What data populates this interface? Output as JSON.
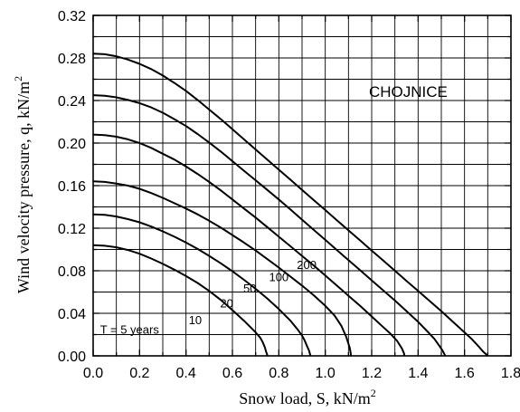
{
  "chart_data": {
    "type": "line",
    "title": "",
    "xlabel_main": "Snow load, S, kN/m",
    "xlabel_sup": "2",
    "ylabel_main": "Wind velocity pressure, q, kN/m",
    "ylabel_sup": "2",
    "xlim": [
      0.0,
      1.8
    ],
    "ylim": [
      0.0,
      0.32
    ],
    "xticks": [
      "0.0",
      "0.2",
      "0.4",
      "0.6",
      "0.8",
      "1.0",
      "1.2",
      "1.4",
      "1.6",
      "1.8"
    ],
    "yticks": [
      "0.00",
      "0.04",
      "0.08",
      "0.12",
      "0.16",
      "0.20",
      "0.24",
      "0.28",
      "0.32"
    ],
    "grid": true,
    "annotation": "CHOJNICE",
    "series": [
      {
        "name": "T = 5 years",
        "label": "T = 5 years",
        "x": [
          0.0,
          0.05,
          0.1,
          0.15,
          0.2,
          0.25,
          0.3,
          0.35,
          0.4,
          0.45,
          0.5,
          0.55,
          0.6,
          0.65,
          0.7,
          0.72,
          0.73,
          0.74,
          0.745,
          0.75,
          0.75
        ],
        "y": [
          0.104,
          0.1035,
          0.102,
          0.0995,
          0.096,
          0.0915,
          0.0865,
          0.081,
          0.075,
          0.0685,
          0.061,
          0.0525,
          0.043,
          0.033,
          0.022,
          0.017,
          0.013,
          0.008,
          0.004,
          0.001,
          0.0
        ]
      },
      {
        "name": "10",
        "label": "10",
        "x": [
          0.0,
          0.05,
          0.1,
          0.15,
          0.2,
          0.25,
          0.3,
          0.35,
          0.4,
          0.45,
          0.5,
          0.55,
          0.6,
          0.65,
          0.7,
          0.75,
          0.8,
          0.85,
          0.88,
          0.9,
          0.91,
          0.92,
          0.93,
          0.935,
          0.935
        ],
        "y": [
          0.133,
          0.1325,
          0.131,
          0.1285,
          0.1255,
          0.1215,
          0.117,
          0.112,
          0.1065,
          0.1005,
          0.094,
          0.087,
          0.0795,
          0.0715,
          0.063,
          0.054,
          0.044,
          0.033,
          0.025,
          0.019,
          0.015,
          0.01,
          0.005,
          0.001,
          0.0
        ]
      },
      {
        "name": "20",
        "label": "20",
        "x": [
          0.0,
          0.05,
          0.1,
          0.15,
          0.2,
          0.25,
          0.3,
          0.35,
          0.4,
          0.45,
          0.5,
          0.55,
          0.6,
          0.65,
          0.7,
          0.75,
          0.8,
          0.85,
          0.9,
          0.95,
          1.0,
          1.04,
          1.07,
          1.09,
          1.105,
          1.11,
          1.11
        ],
        "y": [
          0.164,
          0.1635,
          0.162,
          0.16,
          0.157,
          0.153,
          0.1485,
          0.1435,
          0.1385,
          0.133,
          0.127,
          0.1205,
          0.1135,
          0.1065,
          0.099,
          0.091,
          0.083,
          0.0745,
          0.066,
          0.057,
          0.047,
          0.038,
          0.028,
          0.018,
          0.008,
          0.002,
          0.0
        ]
      },
      {
        "name": "50",
        "label": "50",
        "x": [
          0.0,
          0.05,
          0.1,
          0.15,
          0.2,
          0.25,
          0.3,
          0.35,
          0.4,
          0.45,
          0.5,
          0.55,
          0.6,
          0.65,
          0.7,
          0.75,
          0.8,
          0.85,
          0.9,
          0.95,
          1.0,
          1.05,
          1.1,
          1.15,
          1.2,
          1.25,
          1.28,
          1.31,
          1.33,
          1.34,
          1.34
        ],
        "y": [
          0.208,
          0.2075,
          0.206,
          0.2035,
          0.2,
          0.1955,
          0.19,
          0.1845,
          0.178,
          0.171,
          0.1635,
          0.1555,
          0.147,
          0.1385,
          0.13,
          0.121,
          0.112,
          0.103,
          0.094,
          0.085,
          0.0755,
          0.066,
          0.0565,
          0.047,
          0.037,
          0.027,
          0.021,
          0.014,
          0.007,
          0.002,
          0.0
        ]
      },
      {
        "name": "100",
        "label": "100",
        "x": [
          0.0,
          0.05,
          0.1,
          0.15,
          0.2,
          0.25,
          0.3,
          0.35,
          0.4,
          0.45,
          0.5,
          0.55,
          0.6,
          0.65,
          0.7,
          0.75,
          0.8,
          0.85,
          0.9,
          0.95,
          1.0,
          1.05,
          1.1,
          1.15,
          1.2,
          1.25,
          1.3,
          1.35,
          1.4,
          1.44,
          1.47,
          1.49,
          1.505,
          1.515,
          1.515
        ],
        "y": [
          0.245,
          0.2445,
          0.243,
          0.2405,
          0.2375,
          0.2335,
          0.2285,
          0.2225,
          0.216,
          0.2085,
          0.2005,
          0.192,
          0.183,
          0.174,
          0.165,
          0.156,
          0.147,
          0.1375,
          0.128,
          0.1185,
          0.109,
          0.0995,
          0.09,
          0.0805,
          0.071,
          0.0615,
          0.052,
          0.042,
          0.032,
          0.023,
          0.016,
          0.01,
          0.005,
          0.001,
          0.0
        ]
      },
      {
        "name": "200",
        "label": "200",
        "x": [
          0.0,
          0.05,
          0.1,
          0.15,
          0.2,
          0.25,
          0.3,
          0.35,
          0.4,
          0.45,
          0.5,
          0.55,
          0.6,
          0.65,
          0.7,
          0.75,
          0.8,
          0.85,
          0.9,
          0.95,
          1.0,
          1.05,
          1.1,
          1.15,
          1.2,
          1.25,
          1.3,
          1.35,
          1.4,
          1.45,
          1.5,
          1.55,
          1.6,
          1.63,
          1.66,
          1.68,
          1.69,
          1.695,
          1.695
        ],
        "y": [
          0.284,
          0.2835,
          0.2815,
          0.2785,
          0.2745,
          0.2695,
          0.2635,
          0.2565,
          0.249,
          0.2405,
          0.2315,
          0.2225,
          0.213,
          0.2035,
          0.194,
          0.1845,
          0.175,
          0.1655,
          0.156,
          0.1465,
          0.137,
          0.1275,
          0.118,
          0.1085,
          0.099,
          0.0895,
          0.08,
          0.0705,
          0.061,
          0.0515,
          0.042,
          0.032,
          0.022,
          0.016,
          0.009,
          0.004,
          0.002,
          0.001,
          0.0
        ]
      }
    ]
  }
}
